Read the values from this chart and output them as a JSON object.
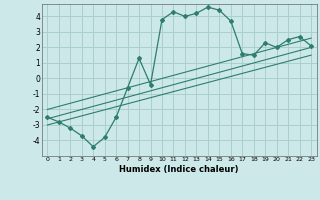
{
  "xlabel": "Humidex (Indice chaleur)",
  "bg_color": "#cce8e8",
  "grid_color": "#aacece",
  "line_color": "#2e7d6e",
  "xlim": [
    -0.5,
    23.5
  ],
  "ylim": [
    -5.0,
    4.8
  ],
  "yticks": [
    -4,
    -3,
    -2,
    -1,
    0,
    1,
    2,
    3,
    4
  ],
  "xticks": [
    0,
    1,
    2,
    3,
    4,
    5,
    6,
    7,
    8,
    9,
    10,
    11,
    12,
    13,
    14,
    15,
    16,
    17,
    18,
    19,
    20,
    21,
    22,
    23
  ],
  "curve_x": [
    0,
    1,
    2,
    3,
    4,
    5,
    6,
    7,
    8,
    9,
    10,
    11,
    12,
    13,
    14,
    15,
    16,
    17,
    18,
    19,
    20,
    21,
    22,
    23
  ],
  "curve_y": [
    -2.5,
    -2.8,
    -3.2,
    -3.7,
    -4.4,
    -3.8,
    -2.5,
    -0.6,
    1.3,
    -0.4,
    3.8,
    4.3,
    4.0,
    4.2,
    4.6,
    4.4,
    3.7,
    1.6,
    1.5,
    2.3,
    2.0,
    2.5,
    2.7,
    2.1
  ],
  "line1_x": [
    0,
    23
  ],
  "line1_y": [
    -3.0,
    1.5
  ],
  "line2_x": [
    0,
    23
  ],
  "line2_y": [
    -2.6,
    2.0
  ],
  "line3_x": [
    0,
    23
  ],
  "line3_y": [
    -2.0,
    2.6
  ]
}
